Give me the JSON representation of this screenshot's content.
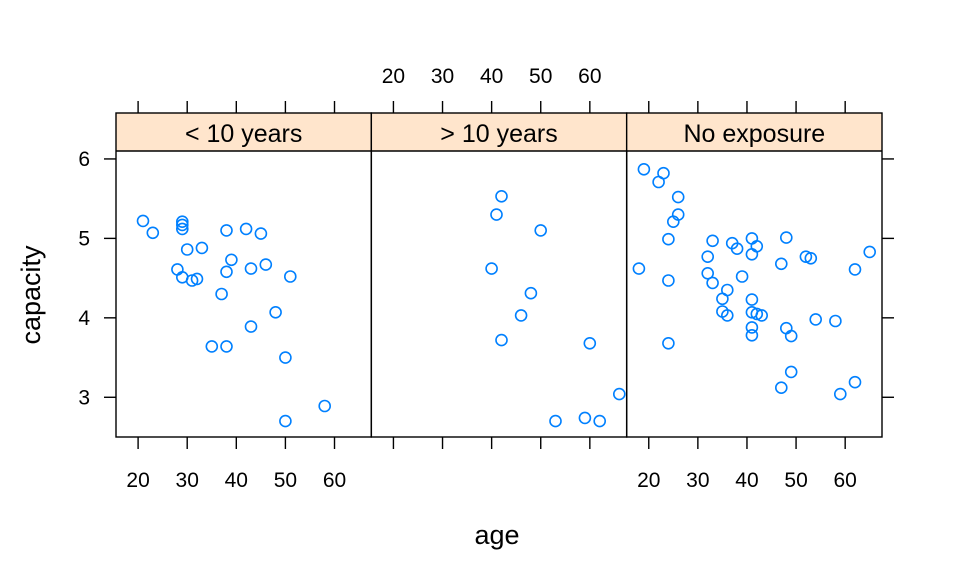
{
  "chart_data": {
    "type": "scatter",
    "xlabel": "age",
    "ylabel": "capacity",
    "xlim": [
      15.5,
      67.5
    ],
    "ylim": [
      2.5,
      6.1
    ],
    "x_ticks": [
      20,
      30,
      40,
      50,
      60
    ],
    "x_tick_labels": [
      "20",
      "30",
      "40",
      "50",
      "60"
    ],
    "y_ticks": [
      3,
      4,
      5,
      6
    ],
    "y_tick_labels": [
      "3",
      "4",
      "5",
      "6"
    ],
    "grid": false,
    "strip_color": "#ffe5cc",
    "point_color": "#0080ff",
    "panels": [
      {
        "label": "< 10 years",
        "points": [
          [
            21,
            5.22
          ],
          [
            23,
            5.07
          ],
          [
            28,
            4.61
          ],
          [
            29,
            5.21
          ],
          [
            29,
            5.17
          ],
          [
            29,
            5.12
          ],
          [
            29,
            4.51
          ],
          [
            30,
            4.86
          ],
          [
            31,
            4.47
          ],
          [
            32,
            4.49
          ],
          [
            33,
            4.88
          ],
          [
            35,
            3.64
          ],
          [
            37,
            4.3
          ],
          [
            38,
            5.1
          ],
          [
            38,
            4.58
          ],
          [
            38,
            3.64
          ],
          [
            39,
            4.73
          ],
          [
            42,
            5.12
          ],
          [
            43,
            4.62
          ],
          [
            43,
            3.89
          ],
          [
            45,
            5.06
          ],
          [
            46,
            4.67
          ],
          [
            48,
            4.07
          ],
          [
            50,
            3.5
          ],
          [
            50,
            2.7
          ],
          [
            51,
            4.52
          ],
          [
            58,
            2.89
          ]
        ]
      },
      {
        "label": "> 10 years",
        "points": [
          [
            40,
            4.62
          ],
          [
            41,
            5.3
          ],
          [
            42,
            5.53
          ],
          [
            42,
            3.72
          ],
          [
            46,
            4.03
          ],
          [
            48,
            4.31
          ],
          [
            50,
            5.1
          ],
          [
            53,
            2.7
          ],
          [
            59,
            2.74
          ],
          [
            60,
            3.68
          ],
          [
            62,
            2.7
          ],
          [
            66,
            3.04
          ]
        ]
      },
      {
        "label": "No exposure",
        "points": [
          [
            18,
            4.62
          ],
          [
            19,
            5.87
          ],
          [
            22,
            5.71
          ],
          [
            23,
            5.82
          ],
          [
            24,
            4.99
          ],
          [
            24,
            4.47
          ],
          [
            24,
            3.68
          ],
          [
            25,
            5.21
          ],
          [
            26,
            5.3
          ],
          [
            26,
            5.52
          ],
          [
            32,
            4.56
          ],
          [
            32,
            4.77
          ],
          [
            33,
            4.97
          ],
          [
            33,
            4.44
          ],
          [
            35,
            4.24
          ],
          [
            35,
            4.08
          ],
          [
            36,
            4.35
          ],
          [
            36,
            4.03
          ],
          [
            37,
            4.94
          ],
          [
            38,
            4.87
          ],
          [
            39,
            4.52
          ],
          [
            41,
            5.0
          ],
          [
            41,
            4.8
          ],
          [
            41,
            4.23
          ],
          [
            41,
            4.07
          ],
          [
            41,
            3.88
          ],
          [
            41,
            3.78
          ],
          [
            42,
            4.9
          ],
          [
            42,
            4.05
          ],
          [
            43,
            4.03
          ],
          [
            47,
            4.68
          ],
          [
            47,
            3.12
          ],
          [
            48,
            5.01
          ],
          [
            48,
            3.87
          ],
          [
            49,
            3.77
          ],
          [
            49,
            3.32
          ],
          [
            52,
            4.77
          ],
          [
            53,
            4.75
          ],
          [
            54,
            3.98
          ],
          [
            58,
            3.96
          ],
          [
            59,
            3.04
          ],
          [
            62,
            4.61
          ],
          [
            62,
            3.19
          ],
          [
            65,
            4.83
          ]
        ]
      }
    ]
  }
}
